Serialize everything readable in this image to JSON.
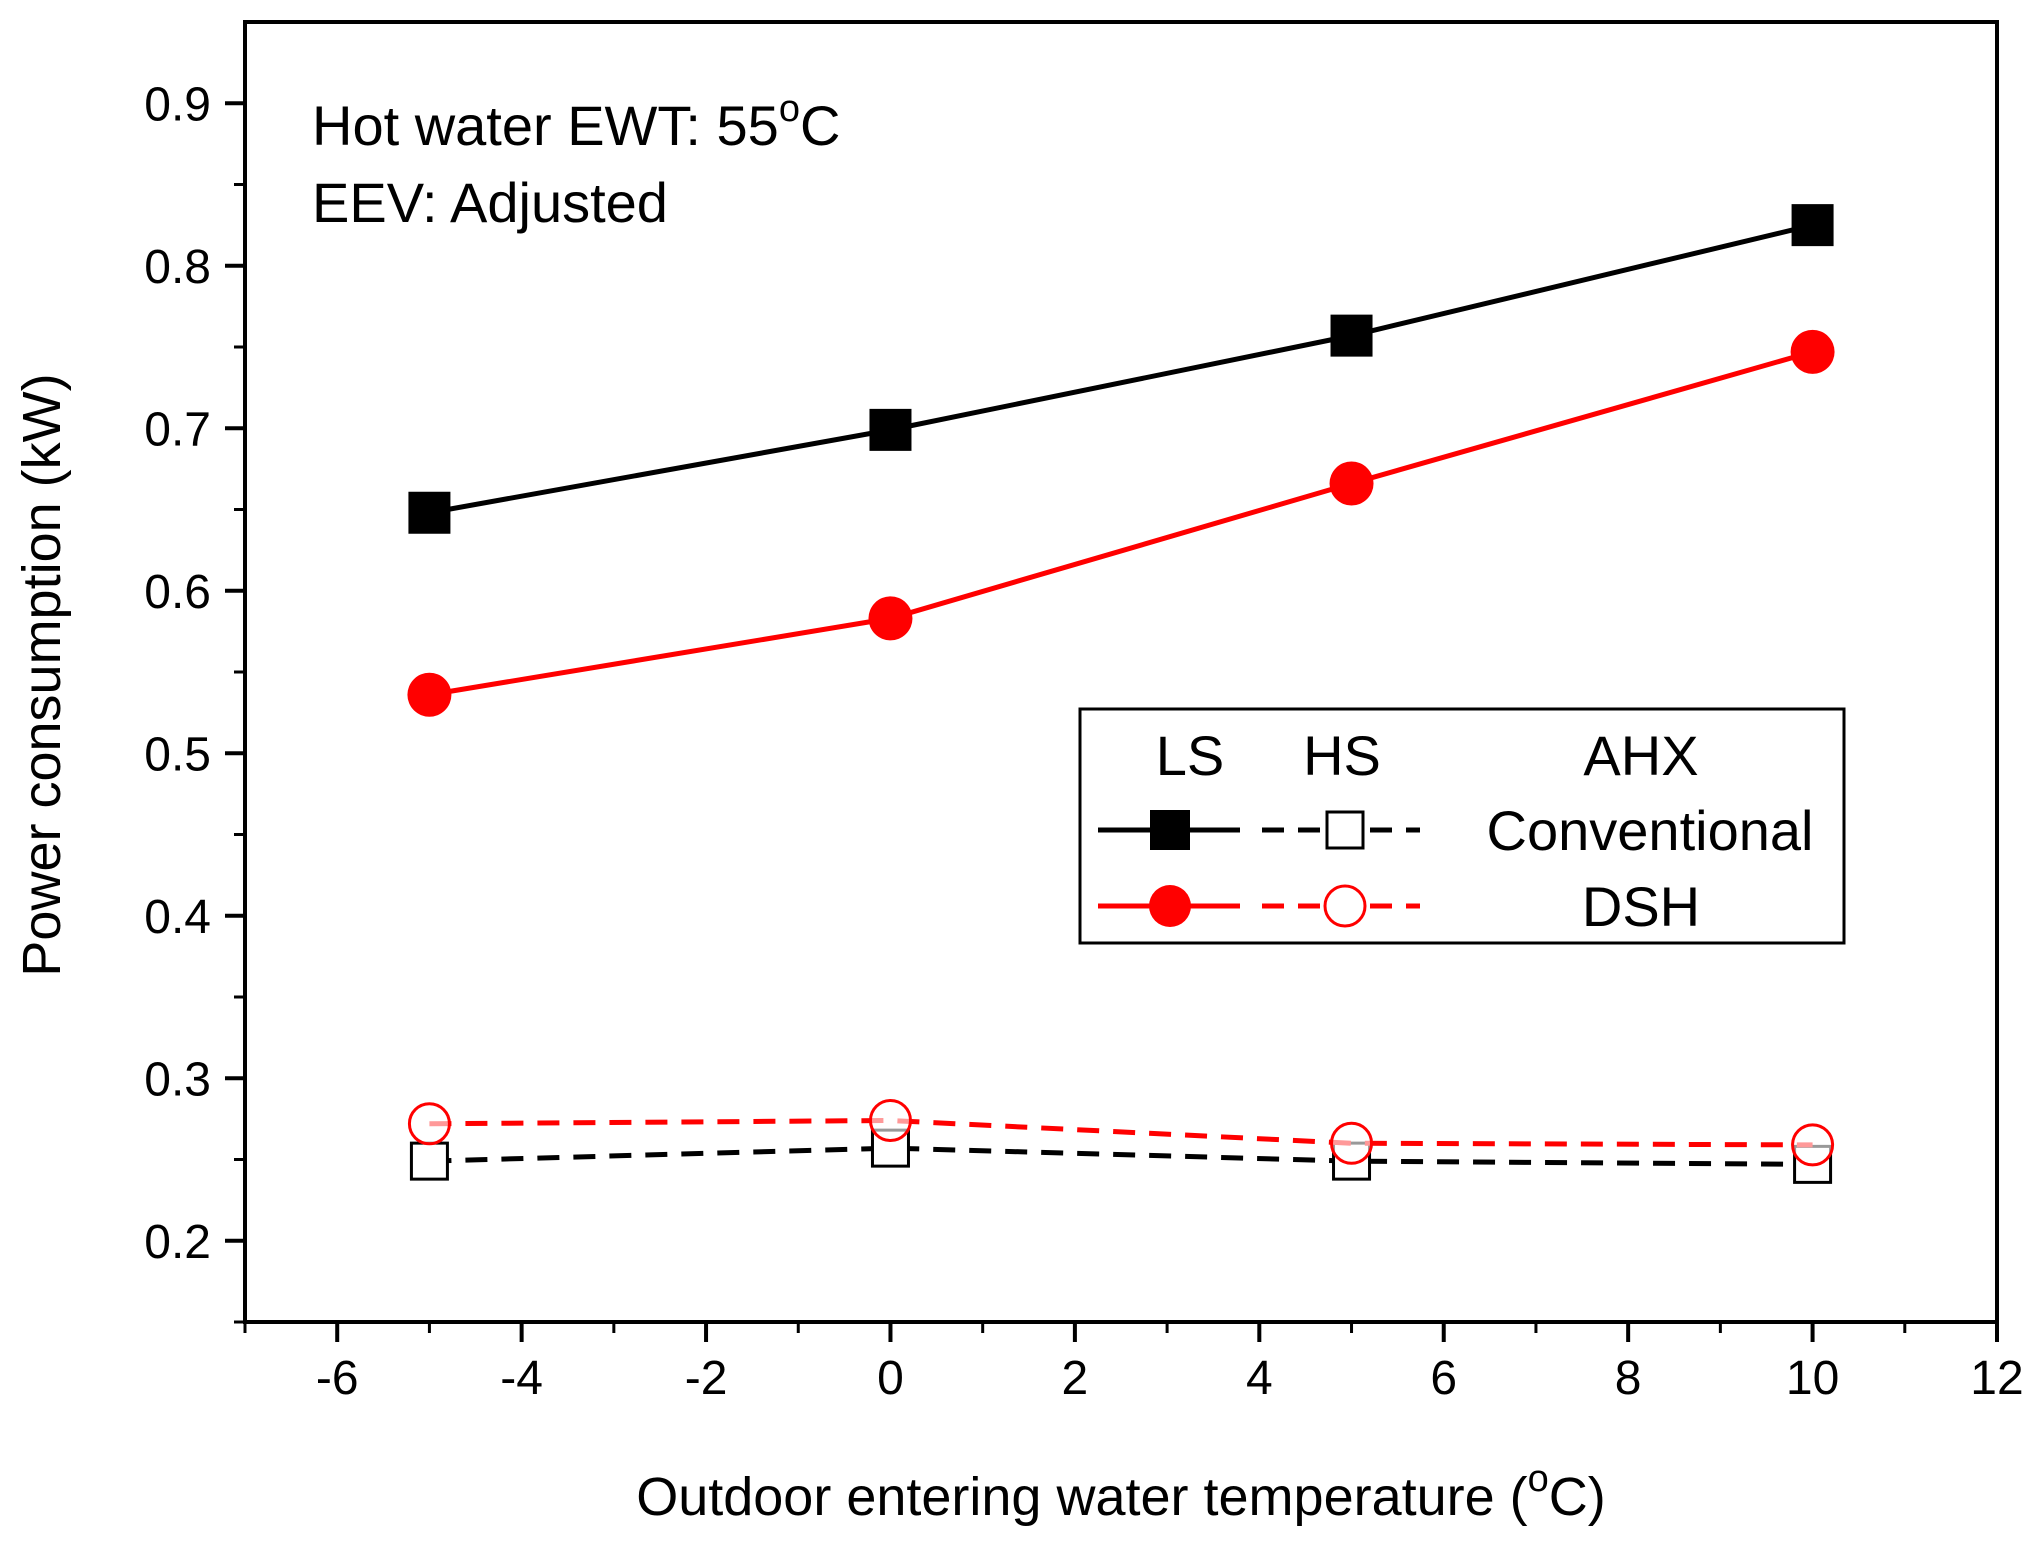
{
  "chart_data": {
    "type": "line",
    "xlabel": "Outdoor entering water temperature (°C)",
    "xlabel_parts": {
      "pre": "Outdoor entering water temperature (",
      "sup": "o",
      "post": "C)"
    },
    "ylabel": "Power consumption (kW)",
    "xlim": [
      -7,
      12
    ],
    "ylim": [
      0.15,
      0.95
    ],
    "x_ticks": [
      -6,
      -4,
      -2,
      0,
      2,
      4,
      6,
      8,
      10,
      12
    ],
    "x_tick_labels": [
      "-6",
      "-4",
      "-2",
      "0",
      "2",
      "4",
      "6",
      "8",
      "10",
      "12"
    ],
    "y_ticks": [
      0.2,
      0.3,
      0.4,
      0.5,
      0.6,
      0.7,
      0.8,
      0.9
    ],
    "y_tick_labels": [
      "0.2",
      "0.3",
      "0.4",
      "0.5",
      "0.6",
      "0.7",
      "0.8",
      "0.9"
    ],
    "annotations": {
      "line1": {
        "pre": "Hot water EWT: 55",
        "sup": "o",
        "post": "C"
      },
      "line2": "EEV: Adjusted"
    },
    "legend": {
      "placement": "center-right",
      "headers": {
        "ls": "LS",
        "hs": "HS",
        "ahx": "AHX"
      },
      "rows": [
        {
          "label": "Conventional",
          "color": "#000000"
        },
        {
          "label": "DSH",
          "color": "#ff0000"
        }
      ]
    },
    "series": [
      {
        "name": "Conventional LS",
        "color": "#000000",
        "marker": "square",
        "filled": true,
        "dashed": false,
        "x": [
          -5,
          0,
          5,
          10
        ],
        "y": [
          0.648,
          0.699,
          0.757,
          0.825
        ]
      },
      {
        "name": "DSH LS",
        "color": "#ff0000",
        "marker": "circle",
        "filled": true,
        "dashed": false,
        "x": [
          -5,
          0,
          5,
          10
        ],
        "y": [
          0.536,
          0.583,
          0.666,
          0.747
        ]
      },
      {
        "name": "Conventional HS",
        "color": "#000000",
        "marker": "square",
        "filled": false,
        "dashed": true,
        "x": [
          -5,
          0,
          5,
          10
        ],
        "y": [
          0.249,
          0.257,
          0.249,
          0.247
        ]
      },
      {
        "name": "DSH HS",
        "color": "#ff0000",
        "marker": "circle",
        "filled": false,
        "dashed": true,
        "x": [
          -5,
          0,
          5,
          10
        ],
        "y": [
          0.272,
          0.274,
          0.26,
          0.259
        ]
      }
    ]
  }
}
